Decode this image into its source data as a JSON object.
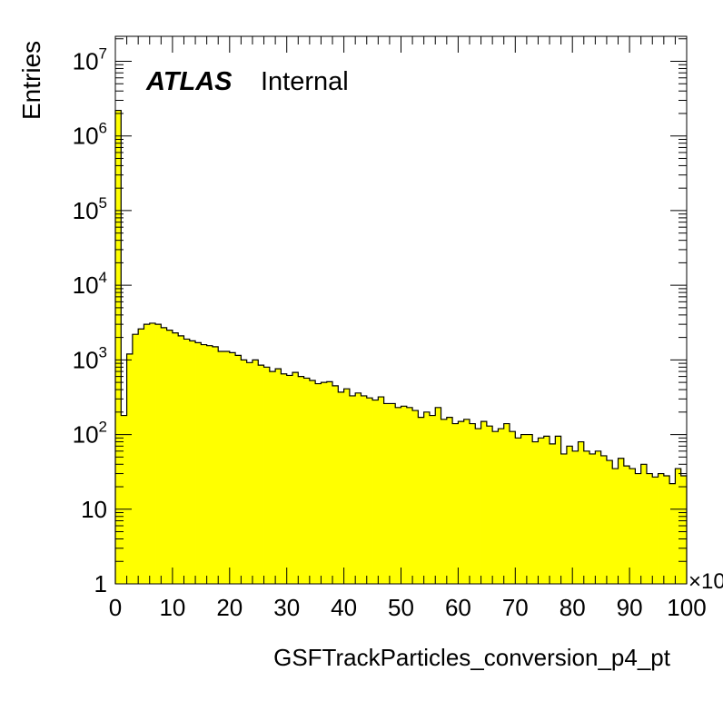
{
  "chart_data": {
    "type": "bar",
    "style": "histogram",
    "fill_color": "#ffff00",
    "line_color": "#000000",
    "xlabel": "GSFTrackParticles_conversion_p4_pt",
    "ylabel": "Entries",
    "x_multiplier_label": "×10",
    "annotation": {
      "bold": "ATLAS",
      "normal": "Internal"
    },
    "x_range": [
      0,
      100
    ],
    "y_range": [
      1,
      20000000
    ],
    "y_scale": "log",
    "grid": false,
    "x_ticks": [
      "0",
      "10",
      "20",
      "30",
      "40",
      "50",
      "60",
      "70",
      "80",
      "90",
      "100"
    ],
    "y_ticks": [
      {
        "base": "1",
        "exp": ""
      },
      {
        "base": "10",
        "exp": ""
      },
      {
        "base": "10",
        "exp": "2"
      },
      {
        "base": "10",
        "exp": "3"
      },
      {
        "base": "10",
        "exp": "4"
      },
      {
        "base": "10",
        "exp": "5"
      },
      {
        "base": "10",
        "exp": "6"
      },
      {
        "base": "10",
        "exp": "7"
      }
    ],
    "bin_width": 1,
    "values": [
      2200000,
      180,
      1200,
      2200,
      2600,
      3000,
      3100,
      3000,
      2700,
      2500,
      2300,
      2100,
      1900,
      1800,
      1700,
      1600,
      1550,
      1500,
      1300,
      1300,
      1250,
      1150,
      1000,
      920,
      1000,
      850,
      800,
      700,
      760,
      650,
      620,
      680,
      600,
      570,
      530,
      480,
      500,
      510,
      450,
      370,
      410,
      330,
      360,
      330,
      310,
      290,
      320,
      260,
      260,
      230,
      240,
      230,
      210,
      170,
      200,
      180,
      230,
      160,
      170,
      140,
      150,
      160,
      140,
      120,
      150,
      130,
      110,
      120,
      140,
      110,
      90,
      100,
      100,
      80,
      90,
      95,
      75,
      95,
      55,
      70,
      60,
      80,
      60,
      55,
      60,
      52,
      45,
      35,
      48,
      38,
      35,
      30,
      40,
      30,
      27,
      30,
      28,
      22,
      35,
      28
    ]
  }
}
